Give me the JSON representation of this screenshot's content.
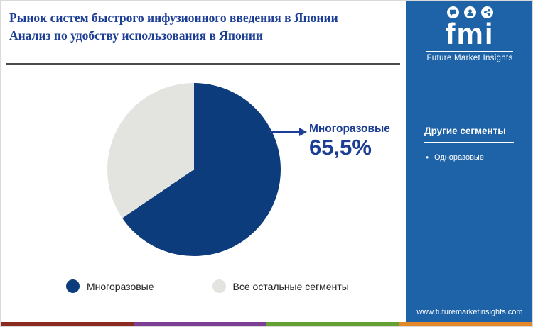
{
  "header": {
    "title_line1": "Рынок систем быстрого инфузионного введения в Японии",
    "title_line2": "Анализ по удобству использования в Японии"
  },
  "chart_data": {
    "type": "pie",
    "title": "Рынок систем быстрого инфузионного введения в Японии — Анализ по удобству использования в Японии",
    "slices": [
      {
        "label": "Многоразовые",
        "value": 65.5,
        "color": "#0d3c7c"
      },
      {
        "label": "Все остальные сегменты",
        "value": 34.5,
        "color": "#e3e3e0"
      }
    ],
    "start_angle_deg": 0,
    "legend_position": "bottom",
    "annotation": {
      "label": "Многоразовые",
      "value": 65.5,
      "value_label": "65,5%"
    }
  },
  "logo": {
    "text": "fmi",
    "subtitle": "Future Market Insights",
    "icons": [
      "chat-icon",
      "user-icon",
      "share-icon"
    ]
  },
  "sidebar": {
    "section_title": "Другие сегменты",
    "items": [
      "Одноразовые"
    ],
    "website": "www.futuremarketinsights.com"
  },
  "colors": {
    "title_navy": "#1c3e94",
    "pie_primary": "#0d3c7c",
    "pie_secondary": "#e3e3e0",
    "sidebar_bg": "#1e63a7",
    "footer_stripe": [
      "#8b2a21",
      "#7d3f94",
      "#64a033",
      "#e2882a"
    ]
  }
}
